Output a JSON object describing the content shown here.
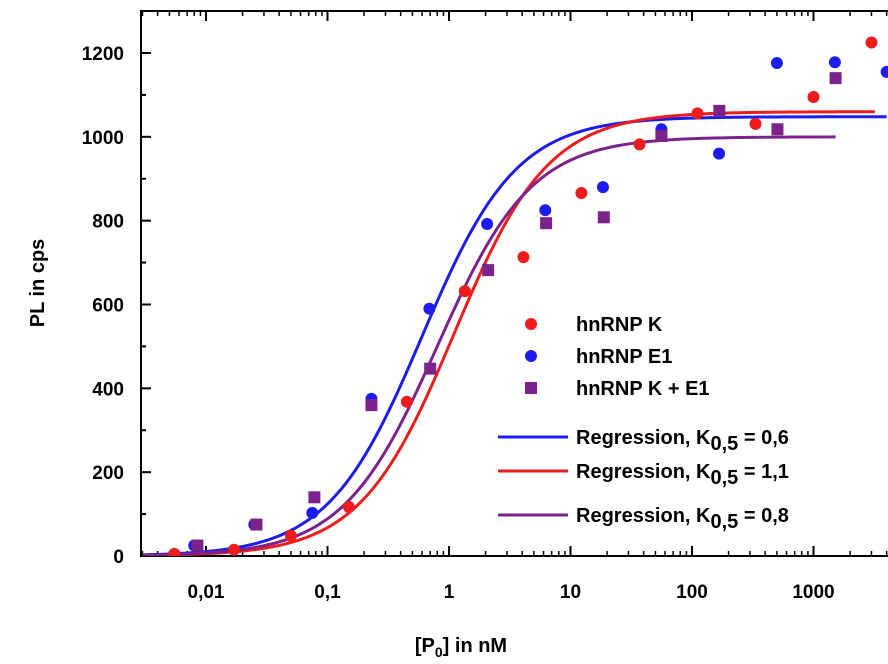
{
  "chart_data": {
    "type": "scatter",
    "xlabel": "[P",
    "xlabel_sub": "0",
    "xlabel_suffix": "] in nM",
    "ylabel": "PL in cps",
    "x_scale": "log",
    "xlim": [
      0.003,
      4000
    ],
    "ylim": [
      0,
      1250
    ],
    "x_ticks": [
      0.01,
      0.1,
      1,
      10,
      100,
      1000
    ],
    "x_tick_labels": [
      "0,01",
      "0,1",
      "1",
      "10",
      "100",
      "1000"
    ],
    "y_ticks": [
      0,
      200,
      400,
      600,
      800,
      1000,
      1200
    ],
    "y_tick_labels": [
      "0",
      "200",
      "400",
      "600",
      "800",
      "1000",
      "1200"
    ],
    "grid": false,
    "legend_position": "lower-right",
    "series": [
      {
        "name": "hnRNP K",
        "kind": "points",
        "marker": "circle",
        "color": "#ee1c1c",
        "x": [
          0.0055,
          0.017,
          0.05,
          0.15,
          0.45,
          1.35,
          4.1,
          12.3,
          37,
          111,
          333,
          1000,
          3000
        ],
        "y": [
          5,
          15,
          48,
          117,
          368,
          632,
          713,
          866,
          982,
          1056,
          1031,
          1095,
          1225
        ]
      },
      {
        "name": "hnRNP E1",
        "kind": "points",
        "marker": "circle",
        "color": "#1c1cee",
        "x": [
          0.008,
          0.025,
          0.075,
          0.23,
          0.69,
          2.06,
          6.2,
          18.5,
          56,
          167,
          500,
          1500,
          4000
        ],
        "y": [
          25,
          75,
          103,
          375,
          590,
          792,
          825,
          880,
          1018,
          960,
          1176,
          1178,
          1155
        ]
      },
      {
        "name": "hnRNP K + E1",
        "kind": "points",
        "marker": "square",
        "color": "#7b238b",
        "x": [
          0.0085,
          0.026,
          0.078,
          0.23,
          0.7,
          2.1,
          6.3,
          18.8,
          56,
          168,
          505,
          1520
        ],
        "y": [
          25,
          75,
          140,
          360,
          447,
          682,
          794,
          808,
          1002,
          1062,
          1018,
          1140
        ]
      },
      {
        "name": "Regression, K",
        "name_sub": "0,5",
        "name_suffix": " = 0,6",
        "kind": "line",
        "color": "#1c1cee",
        "K": 0.6,
        "n": 1.12,
        "top": 1048,
        "xrange": [
          0.003,
          4000
        ]
      },
      {
        "name": "Regression, K",
        "name_sub": "0,5",
        "name_suffix": " = 1,1",
        "kind": "line",
        "color": "#ee1c1c",
        "K": 1.1,
        "n": 1.12,
        "top": 1060,
        "xrange": [
          0.003,
          3200
        ]
      },
      {
        "name": "Regression, K",
        "name_sub": "0,5",
        "name_suffix": " = 0,8",
        "kind": "line",
        "color": "#7b238b",
        "K": 0.8,
        "n": 1.12,
        "top": 1000,
        "xrange": [
          0.003,
          1520
        ]
      }
    ]
  }
}
